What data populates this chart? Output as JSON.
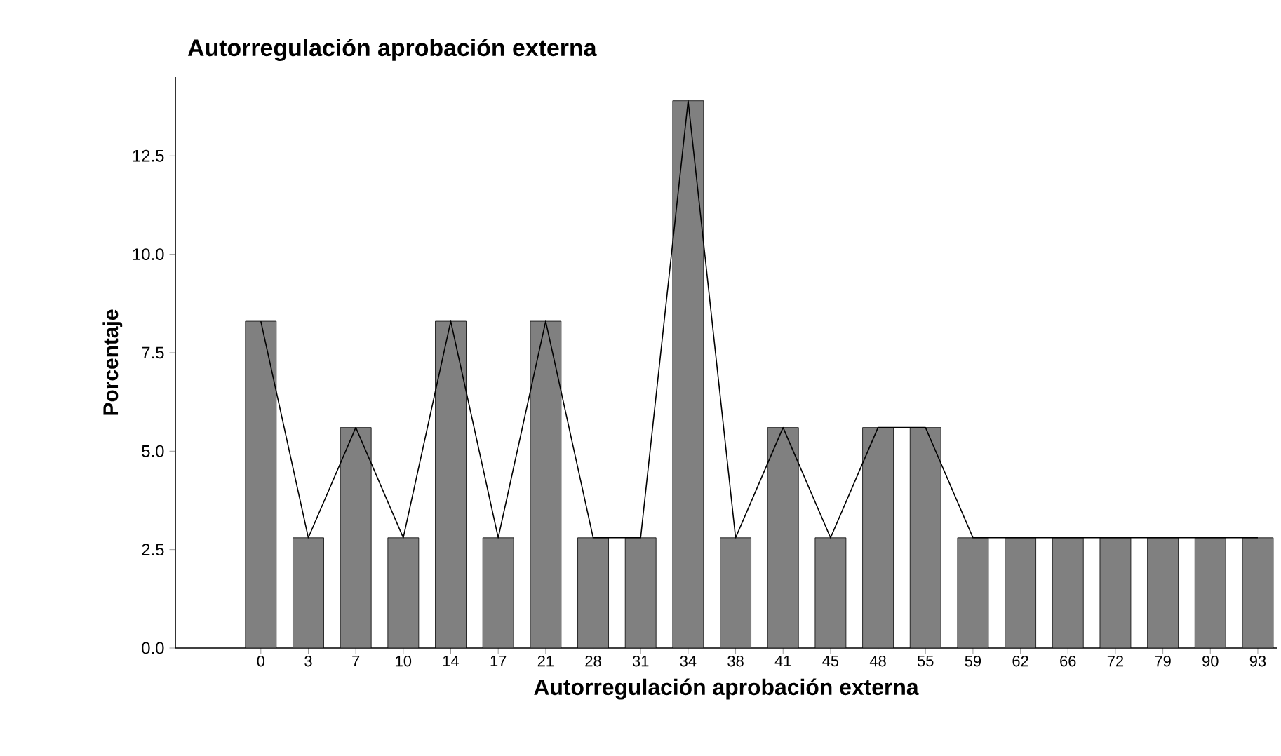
{
  "chart_data": {
    "type": "bar",
    "title": "Autorregulación aprobación externa",
    "xlabel": "Autorregulación aprobación externa",
    "ylabel": "Porcentaje",
    "categories": [
      "0",
      "3",
      "7",
      "10",
      "14",
      "17",
      "21",
      "28",
      "31",
      "34",
      "38",
      "41",
      "45",
      "48",
      "55",
      "59",
      "62",
      "66",
      "72",
      "79",
      "90",
      "93"
    ],
    "series": [
      {
        "color": "#808080",
        "values": [
          8.3,
          2.8,
          5.6,
          2.8,
          8.3,
          2.8,
          8.3,
          2.8,
          2.8,
          13.9,
          2.8,
          5.6,
          2.8,
          5.6,
          5.6,
          2.8,
          2.8,
          2.8,
          2.8,
          2.8,
          2.8,
          2.8
        ]
      },
      {
        "type": "line",
        "color": "#000000",
        "values": [
          8.3,
          2.8,
          5.6,
          2.8,
          8.3,
          2.8,
          8.3,
          2.8,
          2.8,
          13.9,
          2.8,
          5.6,
          2.8,
          5.6,
          5.6,
          2.8,
          2.8,
          2.8,
          2.8,
          2.8,
          2.8,
          2.8
        ]
      }
    ],
    "ylim": [
      0,
      14.5
    ],
    "yticks": [
      {
        "value": 0,
        "label": "0.0"
      },
      {
        "value": 2.5,
        "label": "2.5"
      },
      {
        "value": 5,
        "label": "5.0"
      },
      {
        "value": 7.5,
        "label": "7.5"
      },
      {
        "value": 10,
        "label": "10.0"
      },
      {
        "value": 12.5,
        "label": "12.5"
      }
    ],
    "grid": false
  }
}
